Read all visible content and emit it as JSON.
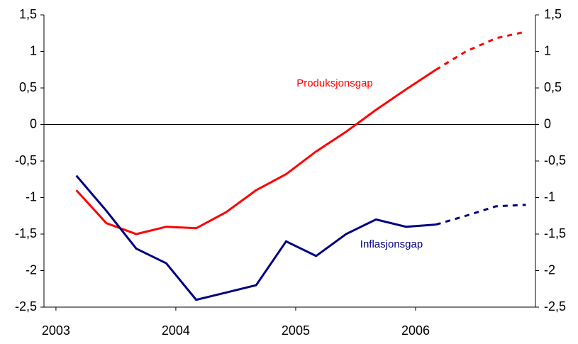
{
  "chart_data": {
    "type": "line",
    "x": [
      2003.17,
      2003.42,
      2003.67,
      2003.92,
      2004.17,
      2004.42,
      2004.67,
      2004.92,
      2005.17,
      2005.42,
      2005.67,
      2005.92,
      2006.17,
      2006.42,
      2006.67,
      2006.92
    ],
    "series": [
      {
        "name": "Produksjonsgap",
        "color": "#ff0000",
        "values": [
          -0.9,
          -1.35,
          -1.5,
          -1.4,
          -1.42,
          -1.2,
          -0.9,
          -0.68,
          -0.37,
          -0.1,
          0.2,
          0.48,
          0.75,
          1.0,
          1.18,
          1.27
        ]
      },
      {
        "name": "Inflasjonsgap",
        "color": "#000080",
        "values": [
          -0.7,
          -1.18,
          -1.7,
          -1.9,
          -2.4,
          -2.3,
          -2.2,
          -1.6,
          -1.8,
          -1.5,
          -1.3,
          -1.4,
          -1.37,
          -1.25,
          -1.12,
          -1.1
        ]
      }
    ],
    "dashed_from_index": 12,
    "xlim": [
      2002.9,
      2007.0
    ],
    "xticks": [
      2003,
      2004,
      2005,
      2006
    ],
    "ylim": [
      -2.5,
      1.5
    ],
    "yticks": [
      {
        "value": -2.5,
        "label": "-2,5"
      },
      -2,
      {
        "value": -1.5,
        "label": "-1,5"
      },
      -1,
      {
        "value": -0.5,
        "label": "-0,5"
      },
      0,
      {
        "value": 0.5,
        "label": "0,5"
      },
      1,
      {
        "value": 1.5,
        "label": "1,5"
      }
    ],
    "y2lim": [
      -2.5,
      1.5
    ],
    "y2ticks": [
      {
        "value": -2.5,
        "label": "-2,5"
      },
      -2,
      {
        "value": -1.5,
        "label": "-1,5"
      },
      -1,
      {
        "value": -0.5,
        "label": "-0,5"
      },
      0,
      {
        "value": 0.5,
        "label": "0,5"
      },
      1,
      {
        "value": 1.5,
        "label": "1,5"
      }
    ]
  }
}
